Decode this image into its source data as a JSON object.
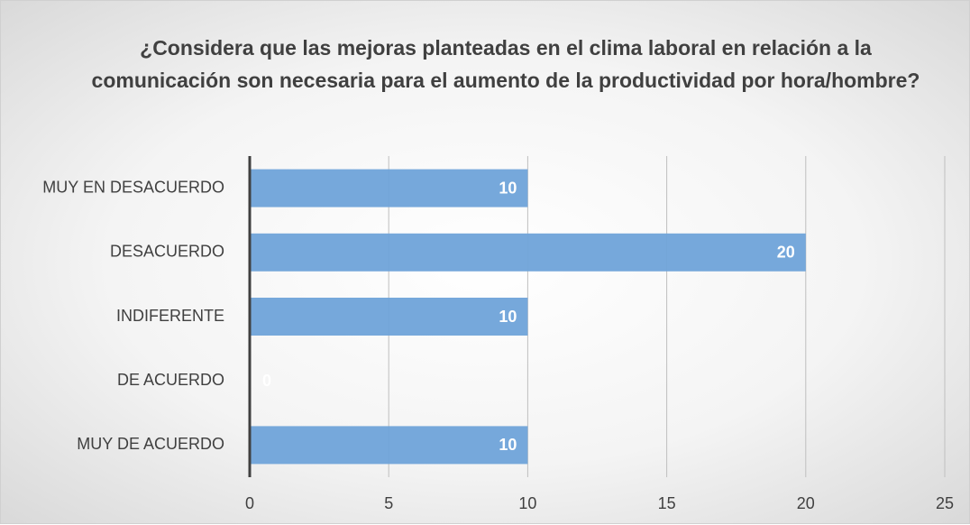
{
  "chart_data": {
    "type": "bar",
    "orientation": "horizontal",
    "title": "¿Considera que las mejoras planteadas en el clima laboral en relación a la comunicación son necesaria para el aumento de la productividad por hora/hombre?",
    "categories": [
      "MUY EN DESACUERDO",
      "DESACUERDO",
      "INDIFERENTE",
      "DE ACUERDO",
      "MUY DE ACUERDO"
    ],
    "values": [
      10,
      20,
      10,
      0,
      10
    ],
    "color": "#6fa3d9",
    "xlim": [
      0,
      25
    ],
    "xticks": [
      0,
      5,
      10,
      15,
      20,
      25
    ],
    "grid": true
  }
}
